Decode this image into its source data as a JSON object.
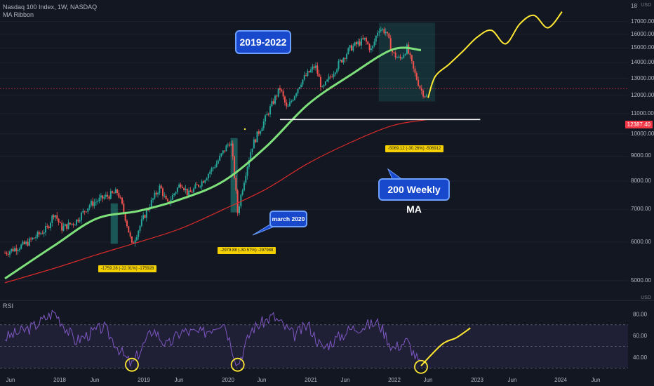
{
  "header": {
    "title": "Nasdaq 100 Index, 1W, NASDAQ",
    "indicator": "MA Ribbon",
    "currency": "USD"
  },
  "rsi_label": "RSI",
  "current_price": "12387.40",
  "annotations": {
    "period_label": "2019-2022",
    "ma_label": "200 Weekly MA",
    "march_label": "march 2020",
    "drop_2018": "-1759.28 (-22.01%) -175928",
    "drop_2020": "-2979.88 (-30.57%) -297988",
    "drop_2022": "-5069.12 (-30.26%) -506912"
  },
  "colors": {
    "background": "#131722",
    "up_candle": "#26a69a",
    "down_candle": "#ef5350",
    "ma_ribbon": "#7ee07a",
    "ma_200": "#d82a2a",
    "projection": "#ffe833",
    "rsi_line": "#7e57c2",
    "callout_bg": "#1848cc"
  },
  "chart_data": {
    "type": "candlestick",
    "title": "Nasdaq 100 Index, 1W, NASDAQ",
    "y_ticks": [
      5000,
      6000,
      7000,
      8000,
      9000,
      10000,
      11000,
      12000,
      13000,
      14000,
      15000,
      16000,
      17000
    ],
    "y_top_label": "18",
    "x_ticks": [
      "Jun",
      "2018",
      "Jun",
      "2019",
      "Jun",
      "2020",
      "Jun",
      "2021",
      "Jun",
      "2022",
      "Jun",
      "2023",
      "Jun",
      "2024",
      "Jun"
    ],
    "ylim": [
      4600,
      18200
    ],
    "price_path": [
      [
        "2017-06",
        5700
      ],
      [
        "2017-09",
        5950
      ],
      [
        "2017-12",
        6400
      ],
      [
        "2018-01",
        6900
      ],
      [
        "2018-02",
        6400
      ],
      [
        "2018-04",
        6600
      ],
      [
        "2018-06",
        7150
      ],
      [
        "2018-08",
        7400
      ],
      [
        "2018-10",
        7600
      ],
      [
        "2018-11",
        6800
      ],
      [
        "2018-12",
        5900
      ],
      [
        "2019-02",
        6900
      ],
      [
        "2019-04",
        7800
      ],
      [
        "2019-05",
        7150
      ],
      [
        "2019-07",
        7950
      ],
      [
        "2019-08",
        7500
      ],
      [
        "2019-10",
        8000
      ],
      [
        "2019-12",
        8700
      ],
      [
        "2020-02",
        9700
      ],
      [
        "2020-03",
        6900
      ],
      [
        "2020-05",
        9400
      ],
      [
        "2020-07",
        10800
      ],
      [
        "2020-09",
        12400
      ],
      [
        "2020-10",
        11200
      ],
      [
        "2020-12",
        12800
      ],
      [
        "2021-02",
        13800
      ],
      [
        "2021-03",
        12300
      ],
      [
        "2021-05",
        13700
      ],
      [
        "2021-07",
        15000
      ],
      [
        "2021-09",
        15600
      ],
      [
        "2021-10",
        14800
      ],
      [
        "2021-11",
        16500
      ],
      [
        "2021-12",
        16200
      ],
      [
        "2022-01",
        14600
      ],
      [
        "2022-02",
        14200
      ],
      [
        "2022-03",
        15000
      ],
      [
        "2022-04",
        13400
      ],
      [
        "2022-05",
        12300
      ],
      [
        "2022-06",
        11800
      ]
    ],
    "ma_ribbon": [
      [
        "2017-06",
        5050
      ],
      [
        "2018-01",
        5900
      ],
      [
        "2018-07",
        6700
      ],
      [
        "2019-01",
        6950
      ],
      [
        "2019-07",
        7350
      ],
      [
        "2020-01",
        8000
      ],
      [
        "2020-07",
        9400
      ],
      [
        "2021-01",
        11500
      ],
      [
        "2021-07",
        13200
      ],
      [
        "2022-01",
        14900
      ],
      [
        "2022-05",
        14850
      ]
    ],
    "ma_200": [
      [
        "2017-06",
        4950
      ],
      [
        "2018-01",
        5300
      ],
      [
        "2018-07",
        5650
      ],
      [
        "2019-01",
        6000
      ],
      [
        "2019-07",
        6400
      ],
      [
        "2020-01",
        7000
      ],
      [
        "2020-07",
        7700
      ],
      [
        "2021-01",
        8700
      ],
      [
        "2021-07",
        9600
      ],
      [
        "2022-01",
        10400
      ],
      [
        "2022-06",
        10700
      ]
    ],
    "support_level": 10700,
    "projection": [
      [
        "2022-06",
        11850
      ],
      [
        "2022-07",
        13100
      ],
      [
        "2022-09",
        13900
      ],
      [
        "2022-11",
        14800
      ],
      [
        "2023-01",
        15800
      ],
      [
        "2023-03",
        16300
      ],
      [
        "2023-05",
        15300
      ],
      [
        "2023-07",
        16800
      ],
      [
        "2023-09",
        17500
      ],
      [
        "2023-11",
        16500
      ],
      [
        "2024-01",
        17800
      ]
    ],
    "rsi": {
      "ylim": [
        25,
        90
      ],
      "y_ticks": [
        40,
        60,
        80
      ],
      "band": [
        30,
        70
      ],
      "values": [
        [
          "2017-06",
          58
        ],
        [
          "2017-10",
          68
        ],
        [
          "2018-01",
          82
        ],
        [
          "2018-04",
          55
        ],
        [
          "2018-08",
          68
        ],
        [
          "2018-11",
          40
        ],
        [
          "2018-12",
          33
        ],
        [
          "2019-03",
          66
        ],
        [
          "2019-05",
          50
        ],
        [
          "2019-07",
          64
        ],
        [
          "2019-10",
          62
        ],
        [
          "2020-01",
          74
        ],
        [
          "2020-03",
          33
        ],
        [
          "2020-05",
          66
        ],
        [
          "2020-08",
          78
        ],
        [
          "2020-11",
          60
        ],
        [
          "2021-01",
          70
        ],
        [
          "2021-03",
          48
        ],
        [
          "2021-07",
          66
        ],
        [
          "2021-11",
          72
        ],
        [
          "2022-01",
          48
        ],
        [
          "2022-03",
          55
        ],
        [
          "2022-05",
          32
        ]
      ],
      "projection": [
        [
          "2022-05",
          32
        ],
        [
          "2022-08",
          52
        ],
        [
          "2022-10",
          58
        ],
        [
          "2022-12",
          67
        ]
      ]
    }
  }
}
